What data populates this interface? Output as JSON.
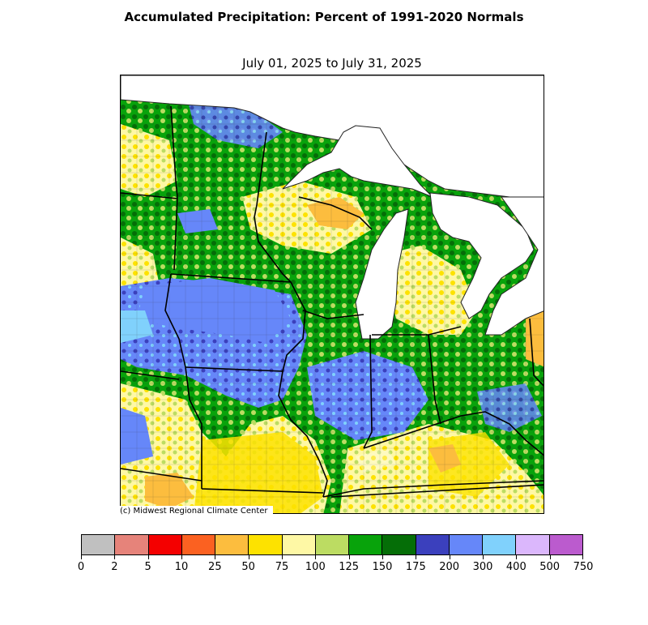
{
  "title": "Accumulated Precipitation: Percent of 1991-2020 Normals",
  "subtitle": "July 01, 2025 to July 31, 2025",
  "credit": "(c) Midwest Regional Climate Center",
  "colorbar": {
    "ticks": [
      "0",
      "2",
      "5",
      "10",
      "25",
      "50",
      "75",
      "100",
      "125",
      "150",
      "175",
      "200",
      "300",
      "400",
      "500",
      "750"
    ],
    "colors": [
      "#c0c0c0",
      "#e6837a",
      "#f40000",
      "#fb6121",
      "#fcbd3e",
      "#fde200",
      "#fef8a5",
      "#bcdc62",
      "#08a30b",
      "#056e07",
      "#3b40bd",
      "#6687f9",
      "#80d1fc",
      "#dbb7fc",
      "#bb5bce"
    ]
  },
  "map_colors": {
    "water": "#ffffff",
    "blue": "#6687f9",
    "dark_blue": "#3b40bd",
    "light_blue": "#80d1fc",
    "green": "#08a30b",
    "dark_green": "#056e07",
    "light_green": "#bcdc62",
    "pale_yellow": "#fef8a5",
    "yellow": "#fde200",
    "orange": "#fcbd3e"
  }
}
